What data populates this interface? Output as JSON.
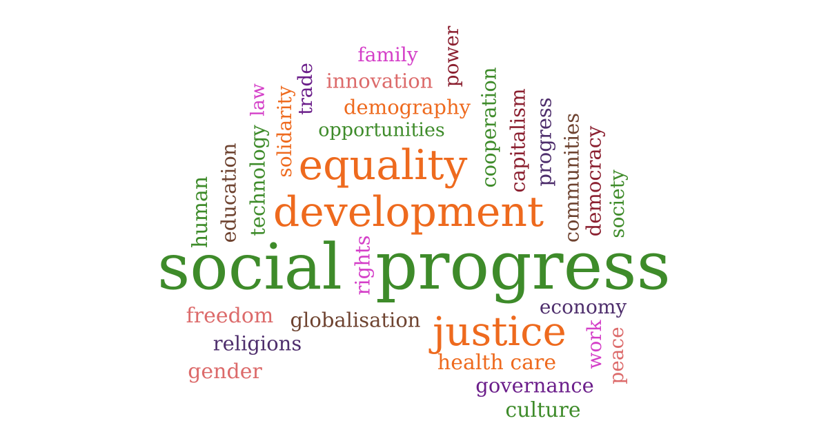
{
  "palette": {
    "green": "#3e8b2a",
    "orange": "#ee6a1e",
    "magenta": "#d43fc8",
    "salmon": "#dc6a6a",
    "brown": "#6e4330",
    "maroon": "#8b2030",
    "purple": "#4e2e6c",
    "violet": "#6b1e8a"
  },
  "words": [
    {
      "id": "social",
      "text": "social",
      "color": "green"
    },
    {
      "id": "progress-main",
      "text": "progress",
      "color": "green"
    },
    {
      "id": "development",
      "text": "development",
      "color": "orange"
    },
    {
      "id": "equality",
      "text": "equality",
      "color": "orange"
    },
    {
      "id": "justice",
      "text": "justice",
      "color": "orange"
    },
    {
      "id": "family",
      "text": "family",
      "color": "magenta"
    },
    {
      "id": "power",
      "text": "power",
      "color": "maroon"
    },
    {
      "id": "innovation",
      "text": "innovation",
      "color": "salmon"
    },
    {
      "id": "trade",
      "text": "trade",
      "color": "violet"
    },
    {
      "id": "demography",
      "text": "demography",
      "color": "orange"
    },
    {
      "id": "opportunities",
      "text": "opportunities",
      "color": "green"
    },
    {
      "id": "solidarity",
      "text": "solidarity",
      "color": "orange"
    },
    {
      "id": "law",
      "text": "law",
      "color": "magenta"
    },
    {
      "id": "technology",
      "text": "technology",
      "color": "green"
    },
    {
      "id": "education",
      "text": "education",
      "color": "brown"
    },
    {
      "id": "human",
      "text": "human",
      "color": "green"
    },
    {
      "id": "cooperation",
      "text": "cooperation",
      "color": "green"
    },
    {
      "id": "capitalism",
      "text": "capitalism",
      "color": "maroon"
    },
    {
      "id": "progress-small",
      "text": "progress",
      "color": "purple"
    },
    {
      "id": "communities",
      "text": "communities",
      "color": "brown"
    },
    {
      "id": "democracy",
      "text": "democracy",
      "color": "maroon"
    },
    {
      "id": "society",
      "text": "society",
      "color": "green"
    },
    {
      "id": "rights",
      "text": "rights",
      "color": "magenta"
    },
    {
      "id": "freedom",
      "text": "freedom",
      "color": "salmon"
    },
    {
      "id": "globalisation",
      "text": "globalisation",
      "color": "brown"
    },
    {
      "id": "religions",
      "text": "religions",
      "color": "purple"
    },
    {
      "id": "gender",
      "text": "gender",
      "color": "salmon"
    },
    {
      "id": "economy",
      "text": "economy",
      "color": "purple"
    },
    {
      "id": "work",
      "text": "work",
      "color": "magenta"
    },
    {
      "id": "peace",
      "text": "peace",
      "color": "salmon"
    },
    {
      "id": "health-care",
      "text": "health care",
      "color": "orange"
    },
    {
      "id": "governance",
      "text": "governance",
      "color": "violet"
    },
    {
      "id": "culture",
      "text": "culture",
      "color": "green"
    }
  ]
}
